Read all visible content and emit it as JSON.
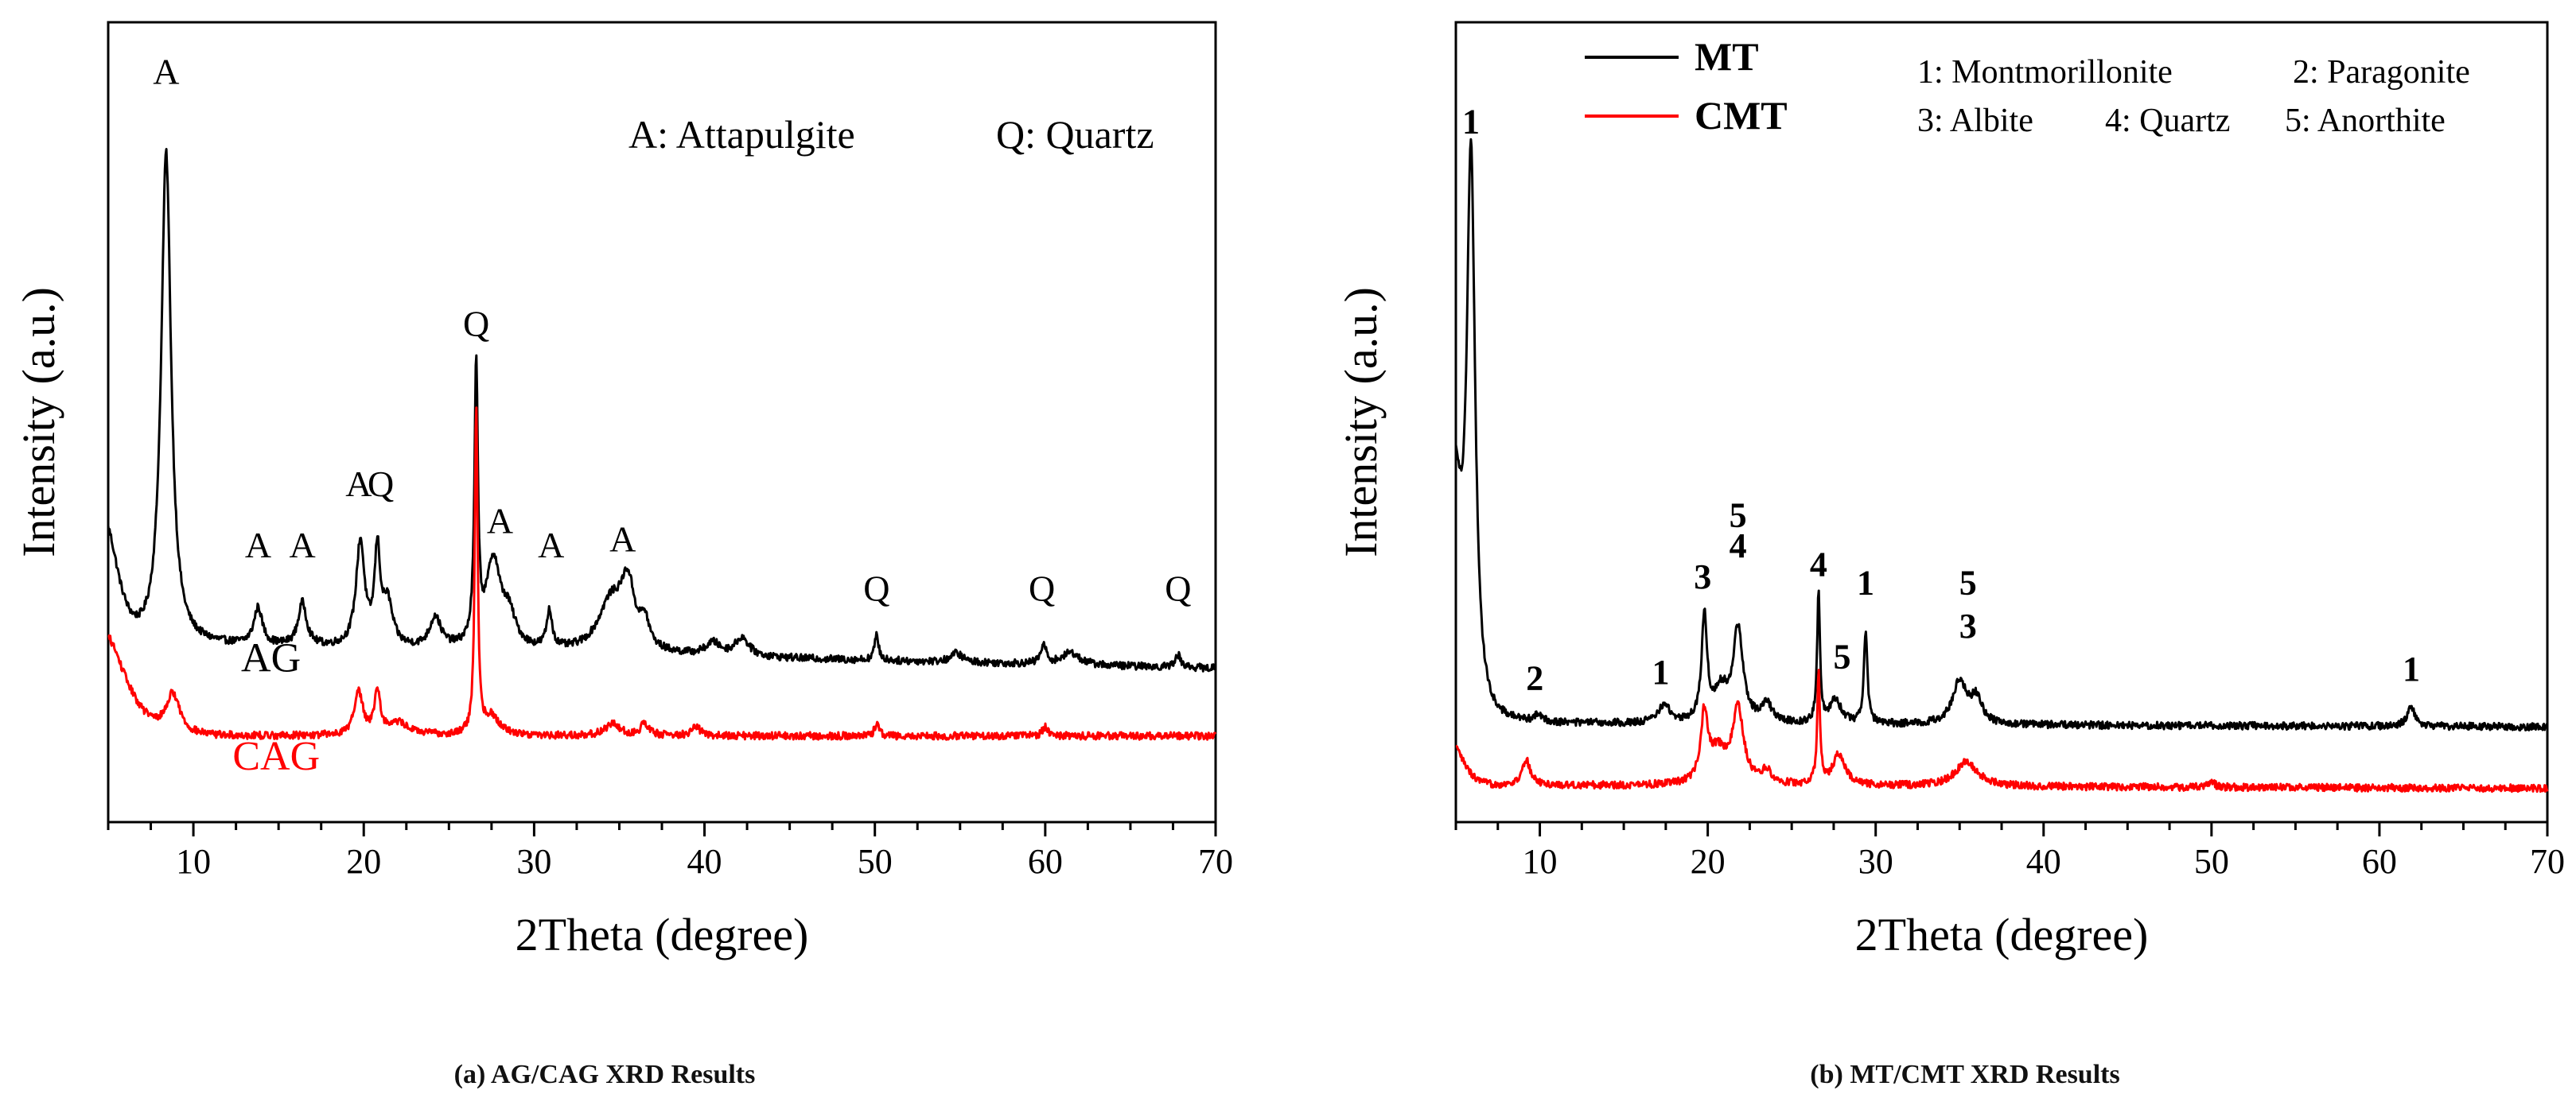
{
  "chart_data": [
    {
      "type": "line",
      "panel": "a",
      "caption": "(a) AG/CAG XRD Results",
      "xlabel": "2Theta (degree)",
      "ylabel": "Intensity (a.u.)",
      "xlim": [
        5,
        70
      ],
      "xticks": [
        "10",
        "20",
        "30",
        "40",
        "50",
        "60",
        "70"
      ],
      "legend_text": [
        "A: Attapulgite",
        "Q: Quartz"
      ],
      "series": [
        {
          "name": "AG",
          "color": "#000000",
          "baseline": 0.29,
          "start_level": 0.47,
          "decay_width": 0.9,
          "end_level": 0.25,
          "peaks": [
            {
              "x": 8.4,
              "h": 0.8,
              "w": 0.35
            },
            {
              "x": 13.8,
              "h": 0.06,
              "w": 0.3
            },
            {
              "x": 16.4,
              "h": 0.07,
              "w": 0.3
            },
            {
              "x": 19.8,
              "h": 0.17,
              "w": 0.3
            },
            {
              "x": 20.8,
              "h": 0.15,
              "w": 0.2
            },
            {
              "x": 21.4,
              "h": 0.07,
              "w": 0.35
            },
            {
              "x": 24.2,
              "h": 0.05,
              "w": 0.4
            },
            {
              "x": 26.6,
              "h": 0.45,
              "w": 0.12
            },
            {
              "x": 27.6,
              "h": 0.14,
              "w": 0.5
            },
            {
              "x": 28.5,
              "h": 0.05,
              "w": 0.5
            },
            {
              "x": 30.9,
              "h": 0.06,
              "w": 0.2
            },
            {
              "x": 34.5,
              "h": 0.08,
              "w": 0.9
            },
            {
              "x": 35.5,
              "h": 0.1,
              "w": 0.5
            },
            {
              "x": 36.5,
              "h": 0.04,
              "w": 0.3
            },
            {
              "x": 40.5,
              "h": 0.02,
              "w": 0.5
            },
            {
              "x": 42.2,
              "h": 0.03,
              "w": 0.5
            },
            {
              "x": 50.1,
              "h": 0.04,
              "w": 0.15
            },
            {
              "x": 54.8,
              "h": 0.015,
              "w": 0.4
            },
            {
              "x": 59.9,
              "h": 0.03,
              "w": 0.2
            },
            {
              "x": 61.5,
              "h": 0.02,
              "w": 0.6
            },
            {
              "x": 67.8,
              "h": 0.02,
              "w": 0.2
            }
          ]
        },
        {
          "name": "CAG",
          "color": "#ff0000",
          "baseline": 0.14,
          "start_level": 0.3,
          "decay_width": 1.6,
          "end_level": 0.14,
          "peaks": [
            {
              "x": 8.8,
              "h": 0.065,
              "w": 0.5
            },
            {
              "x": 19.7,
              "h": 0.07,
              "w": 0.3
            },
            {
              "x": 20.8,
              "h": 0.07,
              "w": 0.2
            },
            {
              "x": 22.0,
              "h": 0.02,
              "w": 0.8
            },
            {
              "x": 26.6,
              "h": 0.53,
              "w": 0.1
            },
            {
              "x": 27.5,
              "h": 0.03,
              "w": 0.6
            },
            {
              "x": 34.6,
              "h": 0.02,
              "w": 0.5
            },
            {
              "x": 36.5,
              "h": 0.02,
              "w": 0.3
            },
            {
              "x": 39.5,
              "h": 0.015,
              "w": 0.3
            },
            {
              "x": 50.1,
              "h": 0.02,
              "w": 0.15
            },
            {
              "x": 60.0,
              "h": 0.015,
              "w": 0.2
            }
          ]
        }
      ],
      "peak_labels": [
        {
          "text": "A",
          "x": 8.4,
          "y": 1.2
        },
        {
          "text": "A",
          "x": 13.8,
          "y": 0.43
        },
        {
          "text": "A",
          "x": 16.4,
          "y": 0.43
        },
        {
          "text": "A",
          "x": 19.7,
          "y": 0.53
        },
        {
          "text": "Q",
          "x": 21.0,
          "y": 0.53
        },
        {
          "text": "Q",
          "x": 26.6,
          "y": 0.79
        },
        {
          "text": "A",
          "x": 28.0,
          "y": 0.47
        },
        {
          "text": "A",
          "x": 31.0,
          "y": 0.43
        },
        {
          "text": "A",
          "x": 35.2,
          "y": 0.44
        },
        {
          "text": "Q",
          "x": 50.1,
          "y": 0.36
        },
        {
          "text": "Q",
          "x": 59.8,
          "y": 0.36
        },
        {
          "text": "Q",
          "x": 67.8,
          "y": 0.36
        }
      ],
      "series_labels": [
        {
          "text": "AG",
          "x": 12.8,
          "y": 0.245,
          "color": "#000000"
        },
        {
          "text": "CAG",
          "x": 12.3,
          "y": 0.085,
          "color": "#ff0000"
        }
      ]
    },
    {
      "type": "line",
      "panel": "b",
      "caption": "(b) MT/CMT XRD Results",
      "xlabel": "2Theta (degree)",
      "ylabel": "Intensity (a.u.)",
      "xlim": [
        5,
        70
      ],
      "xticks": [
        "10",
        "20",
        "30",
        "40",
        "50",
        "60",
        "70"
      ],
      "legend": [
        {
          "name": "MT",
          "color": "#000000"
        },
        {
          "name": "CMT",
          "color": "#ff0000"
        }
      ],
      "legend_text": [
        "1: Montmorillonite",
        "2: Paragonite",
        "3: Albite",
        "4: Quartz",
        "5: Anorthite"
      ],
      "series": [
        {
          "name": "MT",
          "color": "#000000",
          "baseline": 0.16,
          "start_level": 0.52,
          "decay_width": 0.55,
          "end_level": 0.155,
          "peaks": [
            {
              "x": 5.9,
              "h": 0.9,
              "w": 0.3
            },
            {
              "x": 9.9,
              "h": 0.01,
              "w": 0.3
            },
            {
              "x": 17.4,
              "h": 0.03,
              "w": 0.4
            },
            {
              "x": 19.8,
              "h": 0.17,
              "w": 0.2
            },
            {
              "x": 20.8,
              "h": 0.05,
              "w": 0.5
            },
            {
              "x": 21.8,
              "h": 0.15,
              "w": 0.35
            },
            {
              "x": 23.5,
              "h": 0.03,
              "w": 0.4
            },
            {
              "x": 26.6,
              "h": 0.21,
              "w": 0.1
            },
            {
              "x": 27.6,
              "h": 0.04,
              "w": 0.4
            },
            {
              "x": 29.4,
              "h": 0.15,
              "w": 0.13
            },
            {
              "x": 35.0,
              "h": 0.07,
              "w": 0.5
            },
            {
              "x": 36.0,
              "h": 0.04,
              "w": 0.4
            },
            {
              "x": 61.9,
              "h": 0.03,
              "w": 0.3
            }
          ]
        },
        {
          "name": "CMT",
          "color": "#ff0000",
          "baseline": 0.06,
          "start_level": 0.12,
          "decay_width": 0.8,
          "end_level": 0.055,
          "peaks": [
            {
              "x": 9.2,
              "h": 0.04,
              "w": 0.3
            },
            {
              "x": 19.8,
              "h": 0.11,
              "w": 0.25
            },
            {
              "x": 20.6,
              "h": 0.05,
              "w": 0.6
            },
            {
              "x": 21.8,
              "h": 0.12,
              "w": 0.4
            },
            {
              "x": 23.5,
              "h": 0.02,
              "w": 0.4
            },
            {
              "x": 26.6,
              "h": 0.18,
              "w": 0.1
            },
            {
              "x": 27.8,
              "h": 0.05,
              "w": 0.45
            },
            {
              "x": 35.4,
              "h": 0.04,
              "w": 0.8
            },
            {
              "x": 50.0,
              "h": 0.01,
              "w": 0.2
            }
          ]
        }
      ],
      "peak_labels": [
        {
          "text": "1",
          "x": 5.9,
          "y": 1.12
        },
        {
          "text": "2",
          "x": 9.7,
          "y": 0.215
        },
        {
          "text": "1",
          "x": 17.2,
          "y": 0.225
        },
        {
          "text": "3",
          "x": 19.7,
          "y": 0.38
        },
        {
          "text": "5",
          "x": 21.8,
          "y": 0.48
        },
        {
          "text": "4",
          "x": 21.8,
          "y": 0.43
        },
        {
          "text": "4",
          "x": 26.6,
          "y": 0.4
        },
        {
          "text": "5",
          "x": 28.0,
          "y": 0.25
        },
        {
          "text": "1",
          "x": 29.4,
          "y": 0.37
        },
        {
          "text": "5",
          "x": 35.5,
          "y": 0.37
        },
        {
          "text": "3",
          "x": 35.5,
          "y": 0.3
        },
        {
          "text": "1",
          "x": 61.9,
          "y": 0.23
        }
      ]
    }
  ]
}
